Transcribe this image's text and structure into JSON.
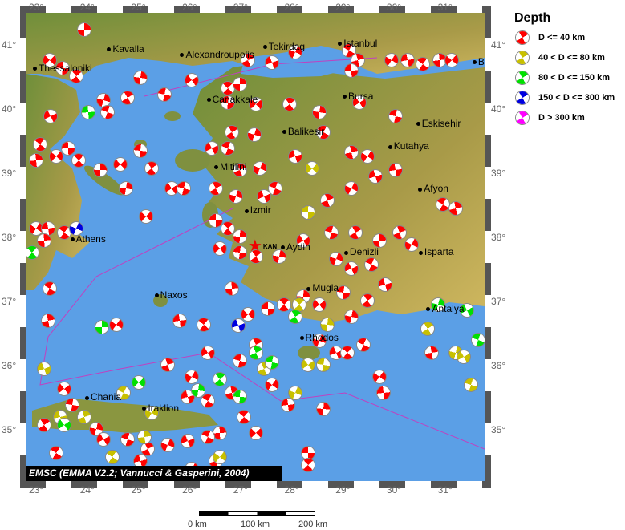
{
  "credit": "EMSC (EMMA V2.2; Vannucci & Gasperini, 2004)",
  "legend": {
    "title": "Depth",
    "items": [
      {
        "label": "D <= 40 km",
        "color": "#ff0000"
      },
      {
        "label": "40 < D <= 80 km",
        "color": "#c8c000"
      },
      {
        "label": "80 < D <= 150 km",
        "color": "#00e000"
      },
      {
        "label": "150 < D <= 300 km",
        "color": "#0000e0"
      },
      {
        "label": "D > 300 km",
        "color": "#ff00ff"
      }
    ]
  },
  "lon_ticks": [
    "23°",
    "24°",
    "25°",
    "26°",
    "27°",
    "28°",
    "29°",
    "30°",
    "31°"
  ],
  "lat_ticks": [
    "41°",
    "40°",
    "39°",
    "38°",
    "37°",
    "36°",
    "35°"
  ],
  "scale_bar": {
    "labels": [
      "0 km",
      "100 km",
      "200 km"
    ]
  },
  "station": {
    "label": "KAN",
    "lon": 27.3,
    "lat": 37.85
  },
  "cities": [
    {
      "name": "Thessaloniki",
      "lon": 23.0,
      "lat": 40.64
    },
    {
      "name": "Kavalla",
      "lon": 24.45,
      "lat": 40.94
    },
    {
      "name": "Alexandroupolis",
      "lon": 25.88,
      "lat": 40.85
    },
    {
      "name": "Tekirdag",
      "lon": 27.5,
      "lat": 40.98
    },
    {
      "name": "Istanbul",
      "lon": 28.97,
      "lat": 41.03
    },
    {
      "name": "B",
      "lon": 31.6,
      "lat": 40.74
    },
    {
      "name": "Canakkale",
      "lon": 26.4,
      "lat": 40.15
    },
    {
      "name": "Bursa",
      "lon": 29.06,
      "lat": 40.2
    },
    {
      "name": "Eskisehir",
      "lon": 30.5,
      "lat": 39.78
    },
    {
      "name": "Balikesir",
      "lon": 27.88,
      "lat": 39.65
    },
    {
      "name": "Kutahya",
      "lon": 29.95,
      "lat": 39.42
    },
    {
      "name": "Mitilini",
      "lon": 26.55,
      "lat": 39.1
    },
    {
      "name": "Izmir",
      "lon": 27.14,
      "lat": 38.42
    },
    {
      "name": "Afyon",
      "lon": 30.54,
      "lat": 38.76
    },
    {
      "name": "Athens",
      "lon": 23.73,
      "lat": 37.98
    },
    {
      "name": "Aydin",
      "lon": 27.85,
      "lat": 37.85
    },
    {
      "name": "Denizli",
      "lon": 29.09,
      "lat": 37.77
    },
    {
      "name": "Isparta",
      "lon": 30.55,
      "lat": 37.77
    },
    {
      "name": "Naxos",
      "lon": 25.38,
      "lat": 37.1
    },
    {
      "name": "Mugla",
      "lon": 28.36,
      "lat": 37.21
    },
    {
      "name": "Antalya",
      "lon": 30.7,
      "lat": 36.89
    },
    {
      "name": "Rhodos",
      "lon": 28.22,
      "lat": 36.44
    },
    {
      "name": "Chania",
      "lon": 24.02,
      "lat": 35.51
    },
    {
      "name": "Iraklion",
      "lon": 25.14,
      "lat": 35.34
    }
  ],
  "events": {
    "red": [
      [
        23.95,
        41.25
      ],
      [
        23.28,
        40.78
      ],
      [
        23.53,
        40.65
      ],
      [
        23.8,
        40.53
      ],
      [
        25.05,
        40.5
      ],
      [
        26.06,
        40.46
      ],
      [
        25.52,
        40.24
      ],
      [
        24.81,
        40.19
      ],
      [
        24.34,
        40.15
      ],
      [
        23.3,
        39.9
      ],
      [
        24.42,
        39.96
      ],
      [
        27.16,
        40.78
      ],
      [
        28.09,
        40.9
      ],
      [
        27.63,
        40.74
      ],
      [
        29.14,
        40.92
      ],
      [
        29.31,
        40.78
      ],
      [
        29.97,
        40.78
      ],
      [
        30.28,
        40.78
      ],
      [
        30.59,
        40.71
      ],
      [
        30.91,
        40.78
      ],
      [
        31.14,
        40.78
      ],
      [
        29.19,
        40.61
      ],
      [
        26.77,
        40.34
      ],
      [
        27.0,
        40.4
      ],
      [
        27.31,
        40.09
      ],
      [
        26.77,
        40.11
      ],
      [
        27.97,
        40.09
      ],
      [
        28.56,
        39.96
      ],
      [
        29.34,
        40.11
      ],
      [
        30.05,
        39.9
      ],
      [
        26.84,
        39.65
      ],
      [
        27.28,
        39.61
      ],
      [
        26.45,
        39.4
      ],
      [
        26.77,
        39.4
      ],
      [
        27.0,
        39.06
      ],
      [
        27.39,
        39.09
      ],
      [
        28.09,
        39.28
      ],
      [
        28.64,
        39.65
      ],
      [
        29.19,
        39.34
      ],
      [
        29.5,
        39.28
      ],
      [
        30.05,
        39.06
      ],
      [
        23.09,
        39.46
      ],
      [
        23.02,
        39.21
      ],
      [
        23.41,
        39.28
      ],
      [
        23.64,
        39.4
      ],
      [
        23.84,
        39.21
      ],
      [
        24.27,
        39.06
      ],
      [
        24.66,
        39.15
      ],
      [
        25.05,
        39.36
      ],
      [
        25.28,
        39.09
      ],
      [
        24.78,
        38.78
      ],
      [
        25.67,
        38.78
      ],
      [
        25.91,
        38.78
      ],
      [
        26.53,
        38.78
      ],
      [
        26.92,
        38.65
      ],
      [
        27.47,
        38.65
      ],
      [
        27.7,
        38.78
      ],
      [
        28.72,
        38.59
      ],
      [
        29.19,
        38.78
      ],
      [
        29.66,
        38.96
      ],
      [
        30.98,
        38.53
      ],
      [
        31.22,
        38.46
      ],
      [
        23.02,
        38.15
      ],
      [
        23.25,
        38.15
      ],
      [
        23.56,
        38.09
      ],
      [
        23.17,
        37.96
      ],
      [
        25.17,
        38.34
      ],
      [
        26.53,
        38.28
      ],
      [
        26.77,
        38.15
      ],
      [
        27.0,
        38.03
      ],
      [
        26.61,
        37.84
      ],
      [
        27.0,
        37.78
      ],
      [
        27.31,
        37.71
      ],
      [
        27.78,
        37.71
      ],
      [
        28.25,
        37.96
      ],
      [
        28.8,
        38.09
      ],
      [
        29.27,
        38.09
      ],
      [
        28.88,
        37.68
      ],
      [
        29.19,
        37.53
      ],
      [
        29.58,
        37.59
      ],
      [
        30.13,
        38.09
      ],
      [
        30.36,
        37.9
      ],
      [
        29.84,
        37.28
      ],
      [
        23.28,
        37.21
      ],
      [
        23.25,
        36.71
      ],
      [
        24.58,
        36.65
      ],
      [
        25.83,
        36.71
      ],
      [
        26.3,
        36.65
      ],
      [
        26.84,
        37.21
      ],
      [
        27.16,
        36.81
      ],
      [
        27.55,
        36.9
      ],
      [
        27.86,
        36.96
      ],
      [
        28.25,
        37.09
      ],
      [
        28.56,
        36.96
      ],
      [
        29.03,
        37.15
      ],
      [
        29.5,
        37.03
      ],
      [
        29.19,
        36.78
      ],
      [
        26.38,
        36.21
      ],
      [
        27.0,
        36.09
      ],
      [
        27.31,
        36.34
      ],
      [
        28.56,
        36.4
      ],
      [
        28.88,
        36.21
      ],
      [
        29.42,
        36.34
      ],
      [
        25.59,
        36.03
      ],
      [
        26.06,
        35.84
      ],
      [
        25.98,
        35.53
      ],
      [
        26.38,
        35.46
      ],
      [
        26.84,
        35.59
      ],
      [
        27.63,
        35.71
      ],
      [
        27.94,
        35.4
      ],
      [
        27.08,
        35.21
      ],
      [
        26.61,
        34.96
      ],
      [
        27.31,
        34.96
      ],
      [
        28.33,
        34.65
      ],
      [
        28.33,
        34.46
      ],
      [
        28.64,
        35.34
      ],
      [
        23.56,
        35.65
      ],
      [
        23.72,
        35.4
      ],
      [
        23.17,
        35.09
      ],
      [
        24.19,
        35.03
      ],
      [
        24.34,
        34.86
      ],
      [
        24.81,
        34.86
      ],
      [
        25.2,
        34.71
      ],
      [
        25.59,
        34.78
      ],
      [
        25.98,
        34.84
      ],
      [
        26.38,
        34.9
      ],
      [
        26.53,
        34.53
      ],
      [
        26.06,
        34.4
      ],
      [
        25.05,
        34.53
      ],
      [
        23.41,
        34.65
      ],
      [
        30.75,
        36.21
      ],
      [
        29.73,
        35.84
      ],
      [
        29.81,
        35.59
      ],
      [
        29.11,
        36.21
      ],
      [
        29.73,
        37.96
      ]
    ],
    "yellow": [
      [
        28.41,
        39.09
      ],
      [
        28.33,
        38.4
      ],
      [
        28.17,
        36.96
      ],
      [
        28.72,
        36.65
      ],
      [
        28.33,
        36.03
      ],
      [
        28.64,
        36.03
      ],
      [
        30.67,
        36.59
      ],
      [
        31.22,
        36.21
      ],
      [
        31.38,
        36.15
      ],
      [
        31.53,
        35.71
      ],
      [
        27.47,
        35.96
      ],
      [
        28.09,
        35.59
      ],
      [
        23.17,
        35.96
      ],
      [
        24.73,
        35.59
      ],
      [
        23.95,
        35.21
      ],
      [
        25.28,
        35.28
      ],
      [
        23.48,
        35.21
      ],
      [
        24.5,
        34.59
      ],
      [
        25.13,
        34.9
      ],
      [
        26.61,
        34.59
      ]
    ],
    "green": [
      [
        24.03,
        39.96
      ],
      [
        22.94,
        37.78
      ],
      [
        24.31,
        36.61
      ],
      [
        25.02,
        35.75
      ],
      [
        27.0,
        35.53
      ],
      [
        26.61,
        35.8
      ],
      [
        26.19,
        35.63
      ],
      [
        23.56,
        35.09
      ],
      [
        27.63,
        36.06
      ],
      [
        28.09,
        36.78
      ],
      [
        30.88,
        36.96
      ],
      [
        31.45,
        36.88
      ],
      [
        31.66,
        36.41
      ],
      [
        27.31,
        36.21
      ]
    ],
    "blue": [
      [
        23.8,
        38.15
      ],
      [
        26.97,
        36.64
      ]
    ]
  },
  "colors": {
    "sea": "#5b9fe6",
    "land_low": "#6f8f3a",
    "land_high": "#c8b060",
    "plate_boundary": "#c040c0"
  }
}
